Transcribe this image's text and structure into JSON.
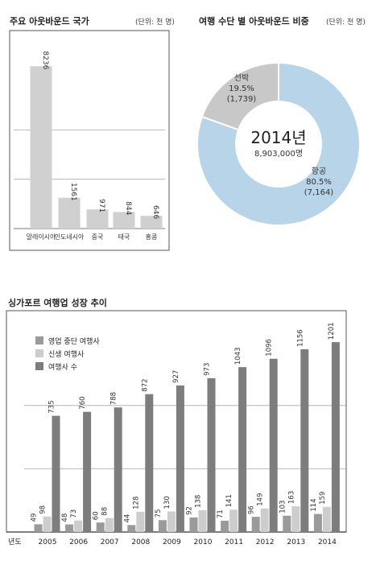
{
  "chart_data": [
    {
      "type": "bar",
      "title": "주요 아웃바운드 국가",
      "unit": "(단위: 천 명)",
      "categories": [
        "말레이시아",
        "인도네시아",
        "중국",
        "태국",
        "홍콩"
      ],
      "values": [
        8236,
        1561,
        971,
        844,
        646
      ],
      "value_labels": [
        "8236",
        "1561",
        "971",
        "844",
        "646"
      ],
      "ylim": [
        0,
        9800
      ],
      "grid": true,
      "colors": {
        "bar": "#d0d0d0"
      }
    },
    {
      "type": "pie",
      "title": "여행 수단 별 아웃바운드 비중",
      "unit": "(단위: 천 명)",
      "center_title": "2014년",
      "center_subtitle": "8,903,000명",
      "slices": [
        {
          "name": "항공",
          "percent_label": "80.5%",
          "count_label": "(7,164)",
          "value": 7164,
          "color": "#b8d4e8"
        },
        {
          "name": "선박",
          "percent_label": "19.5%",
          "count_label": "(1,739)",
          "value": 1739,
          "color": "#c8c8c8"
        }
      ]
    },
    {
      "type": "bar",
      "title": "싱가포르 여행업 성장 추이",
      "x_axis_label": "년도",
      "categories": [
        "2005",
        "2006",
        "2007",
        "2008",
        "2009",
        "2010",
        "2011",
        "2012",
        "2013",
        "2014"
      ],
      "series": [
        {
          "name": "영업 중단 여행사",
          "values": [
            49,
            48,
            60,
            44,
            75,
            92,
            71,
            96,
            103,
            114
          ],
          "color": "#9a9a9a"
        },
        {
          "name": "신생 여행사",
          "values": [
            98,
            73,
            88,
            128,
            130,
            138,
            141,
            149,
            163,
            159
          ],
          "color": "#cdcdcd"
        },
        {
          "name": "여행사 수",
          "values": [
            735,
            760,
            788,
            872,
            927,
            973,
            1043,
            1096,
            1156,
            1201
          ],
          "color": "#7d7d7d"
        }
      ],
      "legend_position": "top-left",
      "ylim": [
        0,
        1400
      ],
      "grid": true
    }
  ]
}
